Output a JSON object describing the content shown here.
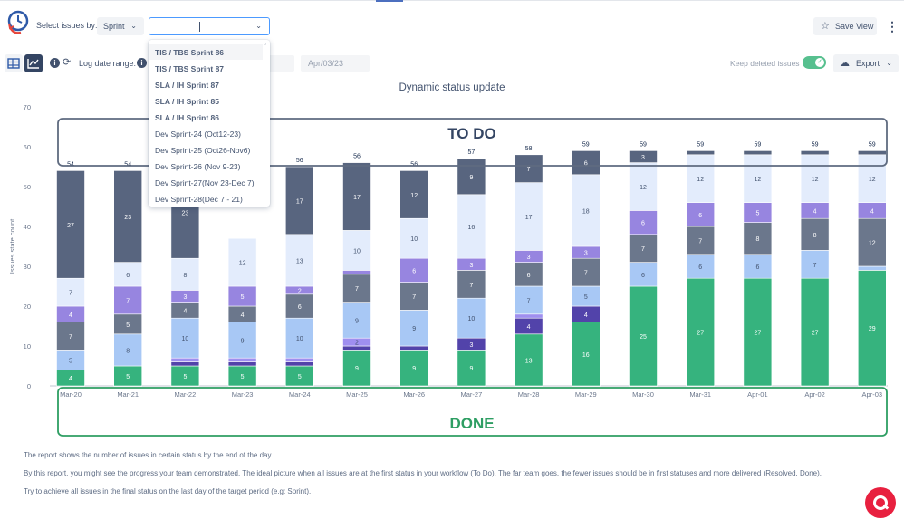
{
  "toolbar": {
    "select_label": "Select issues by:",
    "sprint_select_value": "Sprint",
    "save_view_label": "Save View",
    "date_range_label": "Log date range:",
    "date_from": "",
    "date_to": "Apr/03/23",
    "keep_deleted_label": "Keep deleted issues",
    "keep_deleted_on": true,
    "export_label": "Export"
  },
  "dropdown": {
    "items": [
      {
        "label": "TIS / TBS Sprint 86",
        "bold": true,
        "active": true
      },
      {
        "label": "TIS / TBS Sprint 87",
        "bold": true
      },
      {
        "label": "SLA / IH Sprint 87",
        "bold": true
      },
      {
        "label": "SLA / IH Sprint 85",
        "bold": true
      },
      {
        "label": "SLA / IH Sprint 86",
        "bold": true
      },
      {
        "label": "Dev Sprint-24 (Oct12-23)"
      },
      {
        "label": "Dev Sprint-25 (Oct26-Nov6)"
      },
      {
        "label": "Dev Sprint-26 (Nov 9-23)"
      },
      {
        "label": "Dev Sprint-27(Nov 23-Dec 7)"
      },
      {
        "label": "Dev Sprint-28(Dec 7 - 21)"
      }
    ]
  },
  "icons": {
    "logo": "clock-icon",
    "select_chevron": "chevron-down-icon",
    "save": "star-icon",
    "menu": "kebab-icon",
    "table_view": "table-icon",
    "chart_view": "chart-icon",
    "info": "info-icon",
    "refresh": "refresh-icon",
    "export": "cloud-download-icon",
    "help": "search-help-icon"
  },
  "chart_data": {
    "type": "bar",
    "stacked": true,
    "title": "Dynamic status update",
    "ylabel": "Issues state count",
    "xlabel": "",
    "ylim": [
      0,
      70
    ],
    "yticks": [
      0,
      10,
      20,
      30,
      40,
      50,
      60,
      70
    ],
    "grid": false,
    "categories": [
      "Mar-20",
      "Mar-21",
      "Mar-22",
      "Mar-23",
      "Mar-24",
      "Mar-25",
      "Mar-26",
      "Mar-27",
      "Mar-28",
      "Mar-29",
      "Mar-30",
      "Mar-31",
      "Apr-01",
      "Apr-02",
      "Apr-03"
    ],
    "totals": [
      54,
      54,
      null,
      null,
      56,
      56,
      56,
      57,
      58,
      59,
      59,
      59,
      59,
      59,
      59
    ],
    "series": [
      {
        "color": "#36b37e",
        "values": [
          4,
          5,
          5,
          5,
          5,
          9,
          9,
          9,
          13,
          16,
          25,
          27,
          27,
          27,
          29
        ]
      },
      {
        "color": "#5243aa",
        "values": [
          0,
          0,
          1,
          1,
          1,
          1,
          1,
          3,
          4,
          4,
          0,
          0,
          0,
          0,
          0
        ]
      },
      {
        "color": "#9f8fef",
        "values": [
          0,
          0,
          1,
          1,
          1,
          2,
          0,
          0,
          1,
          0,
          0,
          0,
          0,
          0,
          0
        ]
      },
      {
        "color": "#a8c8f5",
        "values": [
          5,
          8,
          10,
          9,
          10,
          9,
          9,
          10,
          7,
          5,
          6,
          6,
          6,
          7,
          1
        ]
      },
      {
        "color": "#6b778c",
        "values": [
          7,
          5,
          4,
          4,
          6,
          7,
          7,
          7,
          6,
          7,
          7,
          7,
          8,
          8,
          12
        ]
      },
      {
        "color": "#9785e0",
        "values": [
          4,
          7,
          3,
          5,
          2,
          1,
          6,
          3,
          3,
          3,
          6,
          6,
          5,
          4,
          4
        ]
      },
      {
        "color": "#e3ecfc",
        "values": [
          7,
          6,
          8,
          12,
          13,
          10,
          10,
          16,
          17,
          18,
          12,
          12,
          12,
          12,
          12
        ]
      },
      {
        "color": "#58657f",
        "values": [
          27,
          23,
          23,
          0,
          17,
          17,
          12,
          9,
          7,
          6,
          3,
          1,
          1,
          1,
          1
        ]
      }
    ],
    "annotations": [
      {
        "text": "TO DO",
        "color": "#344563"
      },
      {
        "text": "DONE",
        "color": "#2e9e63"
      }
    ]
  },
  "notes": [
    "The report shows the number of issues in certain status by the end of the day.",
    "By this report, you might see the progress your team demonstrated. The ideal picture when all issues are at the first status in your workflow (To Do). The far team goes, the fewer issues should be in first statuses and more delivered (Resolved, Done).",
    "Try to achieve all issues in the final status on the last day of the target period (e.g: Sprint)."
  ]
}
